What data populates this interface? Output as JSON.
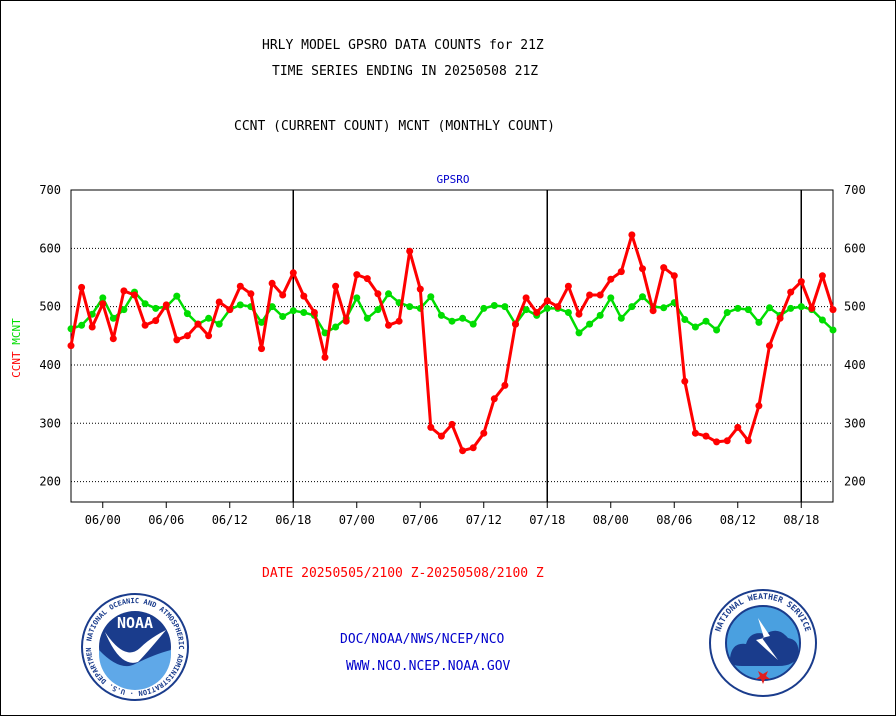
{
  "header": {
    "title_line1": "HRLY MODEL GPSRO DATA COUNTS for 21Z",
    "title_line2": "TIME SERIES ENDING IN 20250508 21Z",
    "subtitle": "CCNT (CURRENT COUNT) MCNT (MONTHLY COUNT)"
  },
  "footer": {
    "date_range": "DATE 20250505/2100 Z-20250508/2100 Z",
    "org_line": "DOC/NOAA/NWS/NCEP/NCO",
    "website": "WWW.NCO.NCEP.NOAA.GOV"
  },
  "logos": {
    "noaa_text": "NOAA",
    "noaa_ring_text": "NATIONAL OCEANIC AND ATMOSPHERIC ADMINISTRATION · U.S. DEPARTMENT OF COMMERCE",
    "nws_ring_text": "NATIONAL WEATHER SERVICE"
  },
  "chart_data": {
    "type": "line",
    "title": "GPSRO",
    "ylabel_left_parts": [
      {
        "text": "CCNT",
        "color": "#ff0000"
      },
      {
        "text": "MCNT",
        "color": "#00dd00"
      }
    ],
    "ylim": [
      165,
      700
    ],
    "yticks": [
      200,
      300,
      400,
      500,
      600,
      700
    ],
    "x_tick_labels": [
      "06/00",
      "06/06",
      "06/12",
      "06/18",
      "07/00",
      "07/06",
      "07/12",
      "07/18",
      "08/00",
      "08/06",
      "08/12",
      "08/18"
    ],
    "x_tick_hours": [
      3,
      9,
      15,
      21,
      27,
      33,
      39,
      45,
      51,
      57,
      63,
      69
    ],
    "x_range_hours": [
      0,
      72
    ],
    "day_boundaries_hours": [
      21,
      45,
      69
    ],
    "grid": "horizontal dotted",
    "series": [
      {
        "color": "#ff0000",
        "values": [
          433,
          533,
          465,
          505,
          445,
          527,
          520,
          468,
          476,
          503,
          443,
          450,
          470,
          450,
          508,
          495,
          535,
          522,
          428,
          540,
          520,
          558,
          518,
          490,
          413,
          535,
          475,
          555,
          548,
          522,
          468,
          475,
          595,
          530,
          293,
          278,
          298,
          253,
          258,
          283,
          342,
          365,
          470,
          515,
          490,
          510,
          500,
          535,
          487,
          520,
          520,
          547,
          560,
          623,
          565,
          493,
          567,
          553,
          372,
          283,
          278,
          268,
          270,
          293,
          270,
          330,
          433,
          480,
          525,
          543,
          497,
          553,
          495
        ]
      },
      {
        "color": "#00dd00",
        "values": [
          462,
          468,
          487,
          515,
          480,
          495,
          525,
          505,
          497,
          500,
          518,
          488,
          470,
          480,
          470,
          495,
          503,
          500,
          473,
          500,
          483,
          493,
          490,
          485,
          455,
          465,
          480,
          515,
          480,
          495,
          522,
          507,
          500,
          497,
          517,
          485,
          475,
          480,
          470,
          497,
          502,
          500,
          470,
          495,
          485,
          497,
          497,
          490,
          455,
          470,
          485,
          515,
          480,
          500,
          517,
          500,
          498,
          507,
          478,
          465,
          475,
          460,
          490,
          497,
          495,
          473,
          498,
          485,
          497,
          500,
          495,
          477,
          460
        ]
      }
    ]
  }
}
